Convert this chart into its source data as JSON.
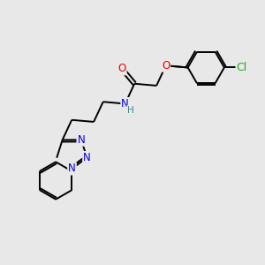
{
  "bg_color": "#e8e8e8",
  "bond_color": "#000000",
  "bond_width": 1.4,
  "atom_colors": {
    "C": "#000000",
    "N": "#0000ee",
    "O": "#ee0000",
    "Cl": "#22aa22",
    "H": "#448888"
  },
  "font_size": 8.5,
  "fig_size": [
    3.0,
    3.0
  ],
  "dpi": 100
}
